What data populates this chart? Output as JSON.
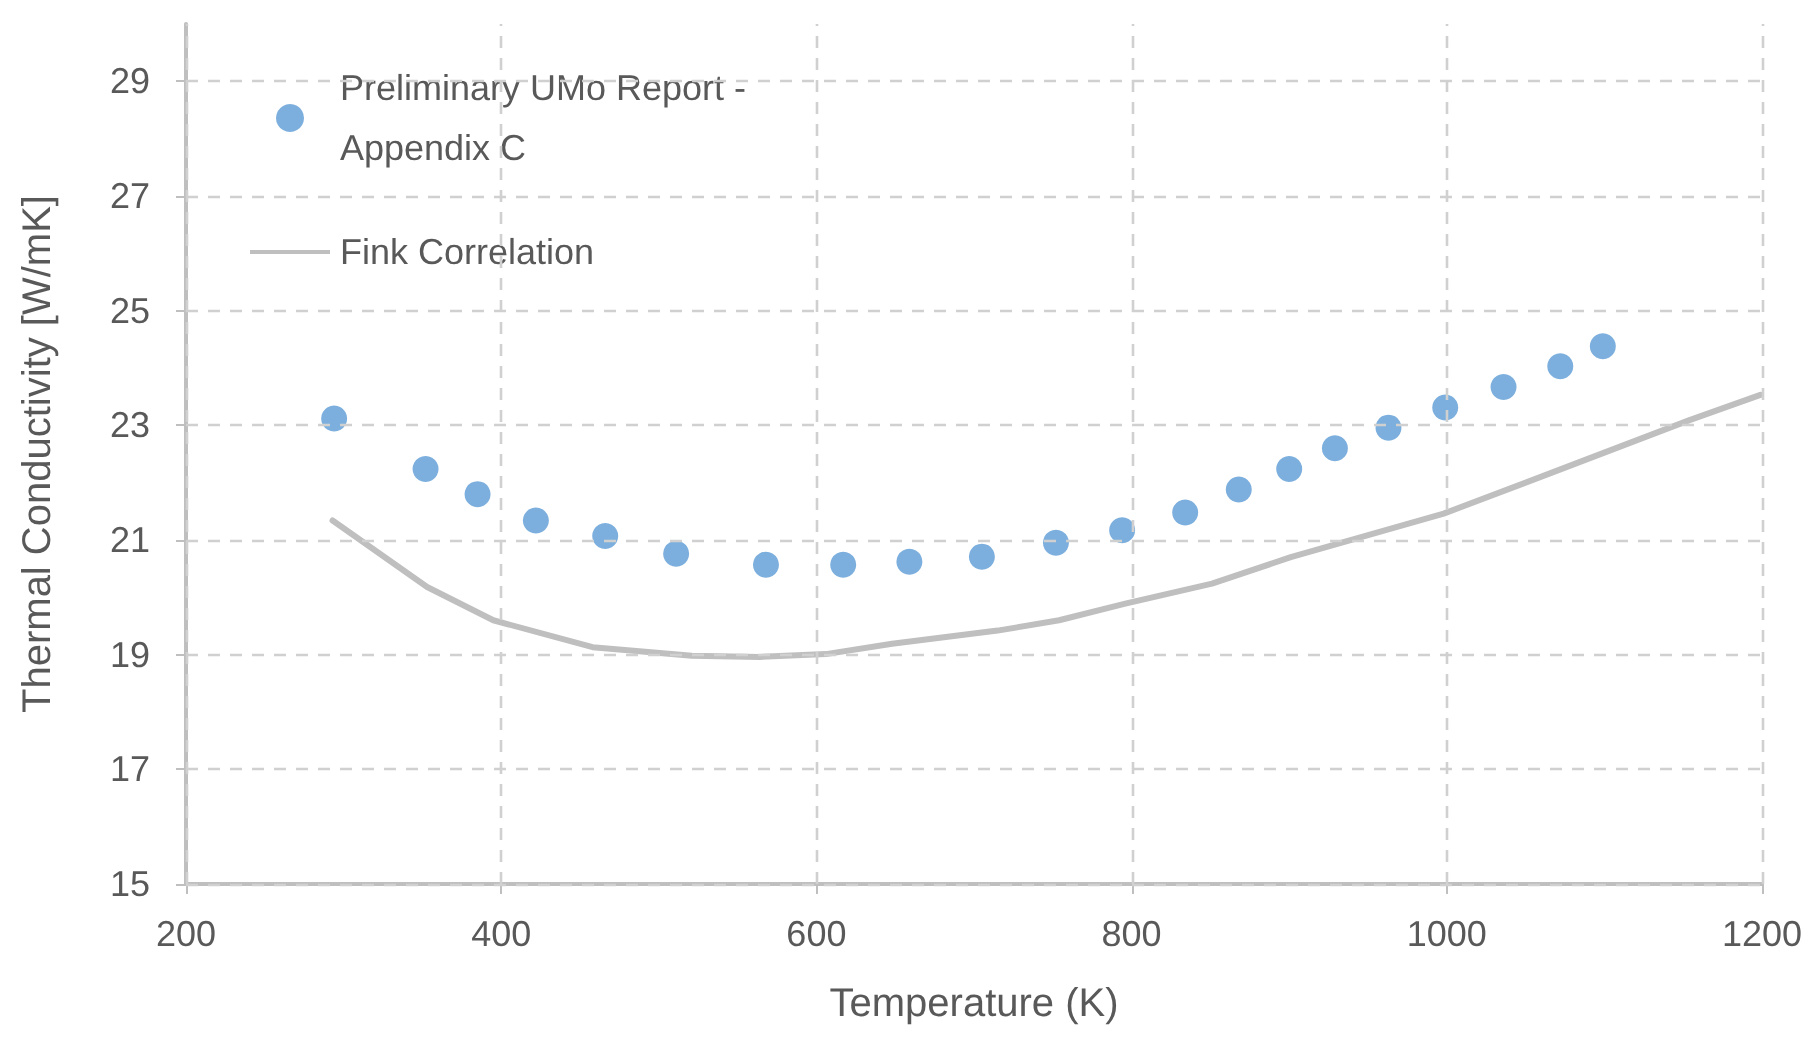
{
  "chart_data": {
    "type": "scatter",
    "xlabel": "Temperature (K)",
    "ylabel": "Thermal Conductivity [W/mK]",
    "xlim": [
      200,
      1200
    ],
    "xticks": [
      200,
      400,
      600,
      800,
      1000,
      1200
    ],
    "ylim": [
      15,
      30
    ],
    "yticks": [
      15,
      17,
      19,
      21,
      23,
      25,
      27,
      29
    ],
    "grid": true,
    "legend": "top left",
    "marker": "circle",
    "series": [
      {
        "name": "Preliminary UMo Report - Appendix C",
        "color": "#5b9bd5",
        "x": [
          294,
          352,
          385,
          422,
          466,
          511,
          568,
          617,
          659,
          705,
          752,
          794,
          834,
          868,
          900,
          929,
          963,
          999,
          1036,
          1072,
          1099
        ],
        "values": [
          23.12,
          22.24,
          21.8,
          21.34,
          21.07,
          20.76,
          20.57,
          20.57,
          20.62,
          20.71,
          20.95,
          21.17,
          21.48,
          21.88,
          22.24,
          22.6,
          22.96,
          23.31,
          23.67,
          24.03,
          24.38
        ]
      },
      {
        "name": "Fink Correlation",
        "type": "line",
        "marker": "none",
        "line_style": "solid",
        "color": "#bfbfbf",
        "x": [
          293,
          353,
          395,
          458,
          521,
          564,
          606,
          648,
          715,
          754,
          796,
          851,
          901,
          998,
          1070,
          1154,
          1199
        ],
        "values": [
          21.34,
          20.18,
          19.6,
          19.13,
          18.98,
          18.96,
          19.01,
          19.19,
          19.42,
          19.6,
          19.89,
          20.24,
          20.7,
          21.46,
          22.21,
          23.09,
          23.53
        ]
      }
    ]
  }
}
